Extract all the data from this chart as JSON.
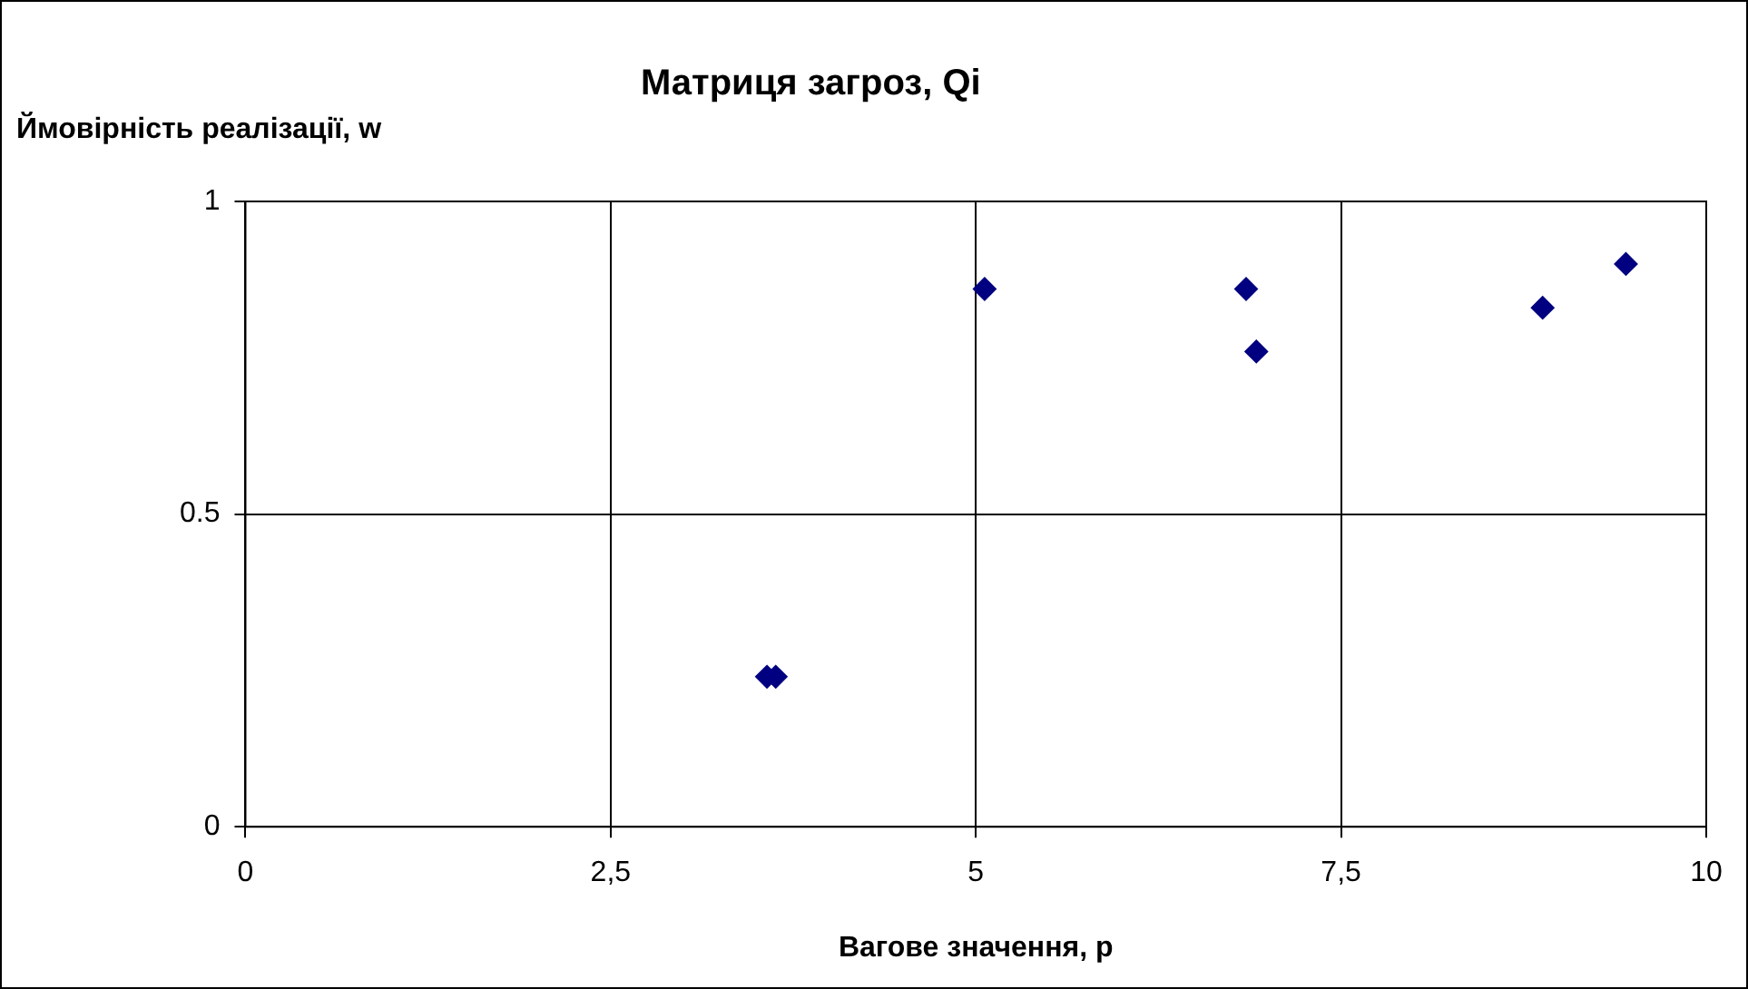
{
  "chart_data": {
    "type": "scatter",
    "title": "Матриця загроз, Qi",
    "xlabel": "Вагове значення, p",
    "ylabel": "Ймовірність реалізації, w",
    "series": [
      {
        "color": "#000080",
        "x": [
          3.57,
          3.63,
          5.06,
          6.85,
          6.92,
          8.88,
          9.45
        ],
        "values": [
          0.24,
          0.24,
          0.86,
          0.86,
          0.76,
          0.83,
          0.9
        ]
      }
    ],
    "xlim": [
      0,
      10
    ],
    "xticks": [
      0,
      {
        "value": 2.5,
        "label": "2,5"
      },
      5,
      {
        "value": 7.5,
        "label": "7,5"
      },
      10
    ],
    "ylim": [
      0,
      1
    ],
    "yticks": [
      0,
      0.5,
      1
    ],
    "grid": true,
    "marker": "diamond"
  }
}
